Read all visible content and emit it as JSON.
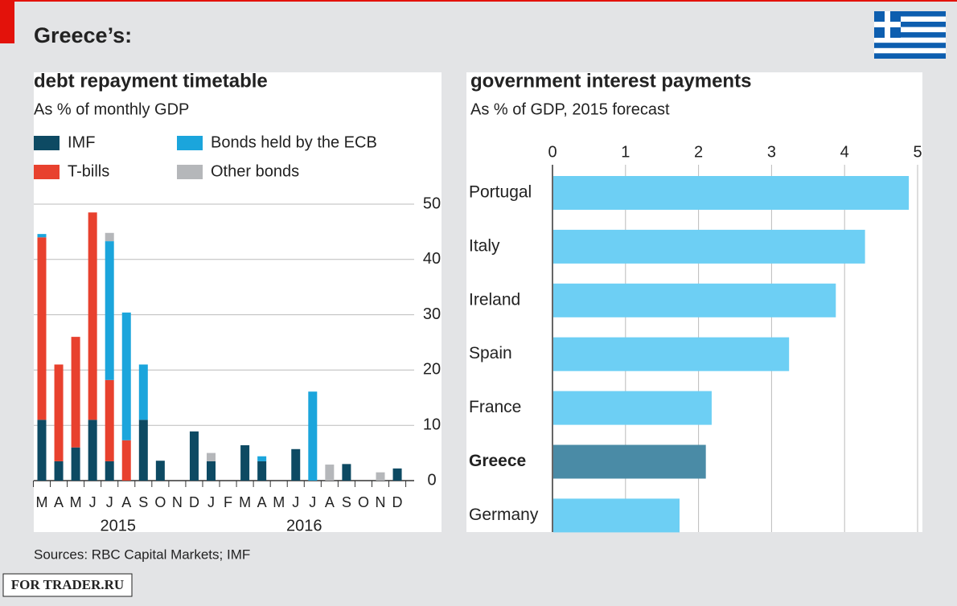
{
  "title": "Greece’s:",
  "source": "Sources: RBC Capital Markets; IMF",
  "watermark": "FOR TRADER.RU",
  "chart_data": [
    {
      "type": "stacked-bar",
      "title": "debt repayment timetable",
      "subtitle": "As % of monthly GDP",
      "categories": [
        "M",
        "A",
        "M",
        "J",
        "J",
        "A",
        "S",
        "O",
        "N",
        "D",
        "J",
        "F",
        "M",
        "A",
        "M",
        "J",
        "J",
        "A",
        "S",
        "O",
        "N",
        "D"
      ],
      "year_labels": [
        "2015",
        "2016"
      ],
      "series": [
        {
          "name": "IMF",
          "color": "#0d4a63",
          "values": [
            11,
            3.5,
            6,
            11,
            3.5,
            0,
            11,
            3.6,
            0,
            8.9,
            3.5,
            0,
            6.4,
            3.5,
            0,
            5.7,
            0,
            0,
            3,
            0,
            0,
            2.2
          ]
        },
        {
          "name": "T-bills",
          "color": "#e8412e",
          "values": [
            33,
            17.5,
            20,
            37.5,
            14.7,
            7.3,
            0,
            0,
            0,
            0,
            0,
            0,
            0,
            0,
            0,
            0,
            0,
            0,
            0,
            0,
            0,
            0
          ]
        },
        {
          "name": "Bonds held by the ECB",
          "color": "#1ba5dc",
          "values": [
            0.6,
            0,
            0,
            0,
            25.1,
            23.1,
            10,
            0,
            0,
            0,
            0,
            0,
            0,
            0.9,
            0,
            0,
            16.1,
            0,
            0,
            0,
            0,
            0
          ]
        },
        {
          "name": "Other bonds",
          "color": "#b5b7ba",
          "values": [
            0,
            0,
            0,
            0,
            1.5,
            0,
            0,
            0,
            0,
            0,
            1.5,
            0,
            0,
            0,
            0,
            0,
            0,
            2.9,
            0,
            0,
            1.5,
            0
          ]
        }
      ],
      "ylim": [
        0,
        50
      ],
      "yticks": [
        0,
        10,
        20,
        30,
        40,
        50
      ],
      "grid": true
    },
    {
      "type": "hbar",
      "title": "government interest payments",
      "subtitle": "As % of GDP, 2015 forecast",
      "categories": [
        "Portugal",
        "Italy",
        "Ireland",
        "Spain",
        "France",
        "Greece",
        "Germany"
      ],
      "values": [
        4.88,
        4.28,
        3.88,
        3.24,
        2.18,
        2.1,
        1.74
      ],
      "color": "#6dcff4",
      "highlight": "Greece",
      "highlight_color": "#4a8ba6",
      "xlim": [
        0,
        5
      ],
      "xticks": [
        0,
        1,
        2,
        3,
        4,
        5
      ],
      "grid": true
    }
  ]
}
